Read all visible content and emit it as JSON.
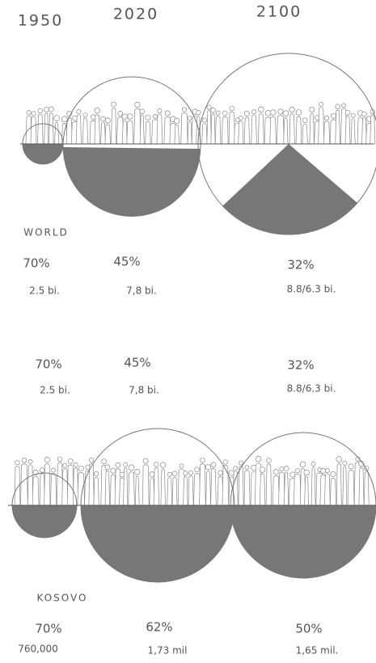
{
  "years": [
    "1950",
    "2020",
    "2100"
  ],
  "world": {
    "label": "WORLD",
    "shares": [
      "70%",
      "45%",
      "32%"
    ],
    "populations": [
      "2.5 bi.",
      "7,8 bi.",
      "8.8/6.3 bi."
    ]
  },
  "repeat": {
    "shares": [
      "70%",
      "45%",
      "32%"
    ],
    "populations": [
      "2.5 bi.",
      "7,8 bi.",
      "8.8/6.3 bi."
    ]
  },
  "kosovo": {
    "label": "KOSOVO",
    "shares": [
      "70%",
      "62%",
      "50%"
    ],
    "populations": [
      "760,000",
      "1,73 mil",
      "1,65 mil."
    ]
  }
}
